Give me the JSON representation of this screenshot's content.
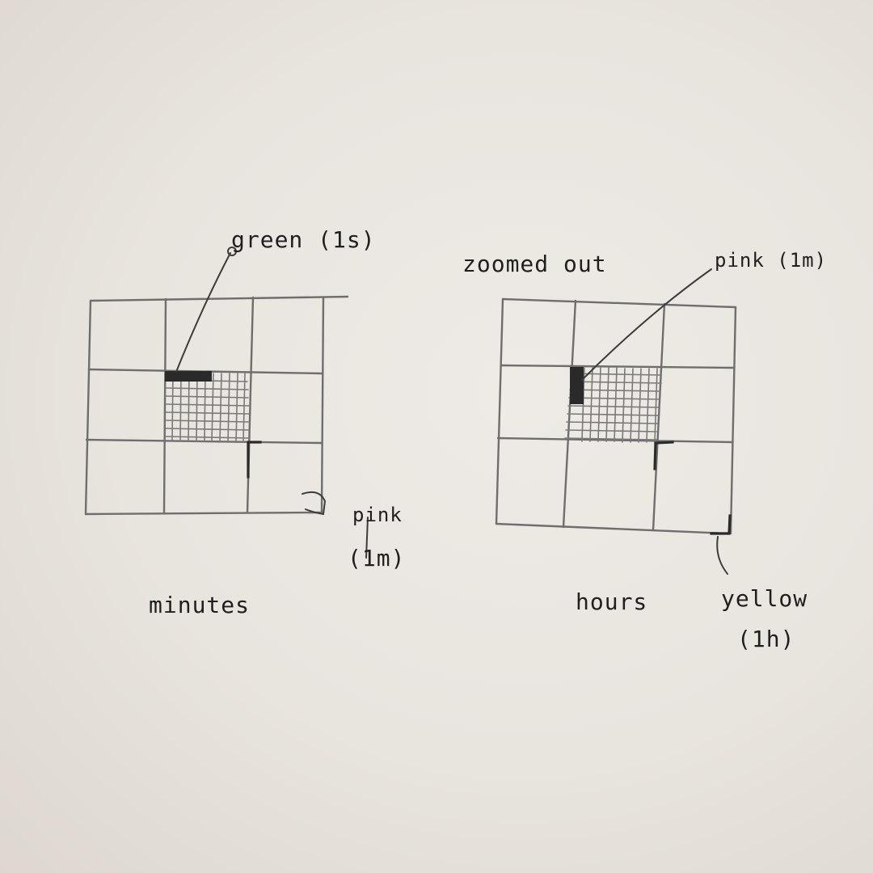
{
  "labels": {
    "green_1s": "green (1s)",
    "zoomed_out": "zoomed out",
    "pink_1m_right": "pink (1m)",
    "pink_left_word": "pink",
    "pink_left_unit": "(1m)",
    "minutes": "minutes",
    "hours": "hours",
    "yellow_word": "yellow",
    "yellow_unit": "(1h)"
  },
  "colors": {
    "paper": "#e8e4de",
    "pencil": "#6e6e6e",
    "ink": "#2a2a2a"
  }
}
